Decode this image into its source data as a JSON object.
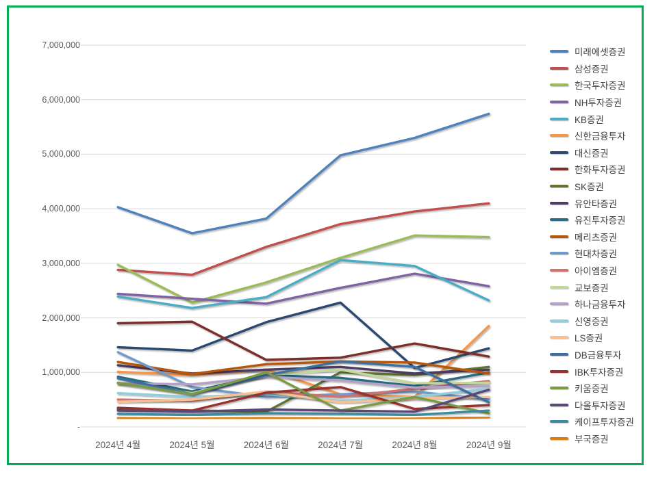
{
  "frame": {
    "border_color": "#00B050",
    "background": "#FFFFFF"
  },
  "chart_data": {
    "type": "line",
    "title": "",
    "xlabel": "",
    "ylabel": "",
    "grid": true,
    "legend_position": "right",
    "categories": [
      "2024년 4월",
      "2024년 5월",
      "2024년 6월",
      "2024년 7월",
      "2024년 8월",
      "2024년 9월"
    ],
    "y_axis": {
      "min": 0,
      "max": 7000000,
      "step": 1000000,
      "tick_labels": [
        "7,000,000",
        "6,000,000",
        "5,000,000",
        "4,000,000",
        "3,000,000",
        "2,000,000",
        "1,000,000",
        "-"
      ]
    },
    "series": [
      {
        "name": "미래에셋증권",
        "color": "#4F81BD",
        "values": [
          4030000,
          3550000,
          3820000,
          4980000,
          5300000,
          5740000
        ]
      },
      {
        "name": "삼성증권",
        "color": "#C0504D",
        "values": [
          2880000,
          2790000,
          3300000,
          3720000,
          3950000,
          4100000
        ]
      },
      {
        "name": "한국투자증권",
        "color": "#9BBB59",
        "values": [
          2970000,
          2280000,
          2650000,
          3100000,
          3510000,
          3480000
        ]
      },
      {
        "name": "NH투자증권",
        "color": "#8064A2",
        "values": [
          2440000,
          2350000,
          2260000,
          2550000,
          2810000,
          2580000
        ]
      },
      {
        "name": "KB증권",
        "color": "#4BACC6",
        "values": [
          2390000,
          2180000,
          2380000,
          3060000,
          2950000,
          2320000
        ]
      },
      {
        "name": "신한금융투자",
        "color": "#F79646",
        "values": [
          1010000,
          950000,
          1050000,
          600000,
          550000,
          1850000
        ]
      },
      {
        "name": "대신증권",
        "color": "#2A4A70",
        "values": [
          1460000,
          1400000,
          1920000,
          2280000,
          1080000,
          1440000
        ]
      },
      {
        "name": "한화투자증권",
        "color": "#7B2E2B",
        "values": [
          1900000,
          1930000,
          1230000,
          1270000,
          1530000,
          1290000
        ]
      },
      {
        "name": "SK증권",
        "color": "#5F7530",
        "values": [
          330000,
          300000,
          280000,
          1000000,
          950000,
          1100000
        ]
      },
      {
        "name": "유안타증권",
        "color": "#4D3B62",
        "values": [
          1130000,
          980000,
          1050000,
          1100000,
          980000,
          1050000
        ]
      },
      {
        "name": "유진투자증권",
        "color": "#2B6A80",
        "values": [
          920000,
          650000,
          950000,
          900000,
          750000,
          1000000
        ]
      },
      {
        "name": "메리츠증권",
        "color": "#B65708",
        "values": [
          1190000,
          970000,
          1150000,
          1200000,
          1180000,
          980000
        ]
      },
      {
        "name": "현대차증권",
        "color": "#729ACA",
        "values": [
          1370000,
          730000,
          550000,
          600000,
          650000,
          500000
        ]
      },
      {
        "name": "아이엠증권",
        "color": "#CD7371",
        "values": [
          500000,
          480000,
          650000,
          550000,
          700000,
          840000
        ]
      },
      {
        "name": "교보증권",
        "color": "#C3D69B",
        "values": [
          790000,
          620000,
          950000,
          1050000,
          800000,
          810000
        ]
      },
      {
        "name": "하나금융투자",
        "color": "#B3A2C7",
        "values": [
          800000,
          780000,
          920000,
          850000,
          720000,
          750000
        ]
      },
      {
        "name": "신영증권",
        "color": "#92CDDC",
        "values": [
          620000,
          550000,
          600000,
          480000,
          550000,
          700000
        ]
      },
      {
        "name": "LS증권",
        "color": "#FAC090",
        "values": [
          460000,
          500000,
          650000,
          450000,
          520000,
          550000
        ]
      },
      {
        "name": "DB금융투자",
        "color": "#3A6F9F",
        "values": [
          890000,
          600000,
          950000,
          1200000,
          1100000,
          450000
        ]
      },
      {
        "name": "IBK투자증권",
        "color": "#99332F",
        "values": [
          350000,
          300000,
          630000,
          730000,
          330000,
          400000
        ]
      },
      {
        "name": "키움증권",
        "color": "#7C9A44",
        "values": [
          810000,
          600000,
          1000000,
          300000,
          550000,
          250000
        ]
      },
      {
        "name": "다올투자증권",
        "color": "#5C4776",
        "values": [
          300000,
          280000,
          320000,
          300000,
          280000,
          680000
        ]
      },
      {
        "name": "케이프투자증권",
        "color": "#3C8BA0",
        "values": [
          240000,
          220000,
          250000,
          240000,
          220000,
          300000
        ]
      },
      {
        "name": "부국증권",
        "color": "#DD7D0C",
        "values": [
          160000,
          150000,
          160000,
          150000,
          150000,
          180000
        ]
      }
    ]
  }
}
